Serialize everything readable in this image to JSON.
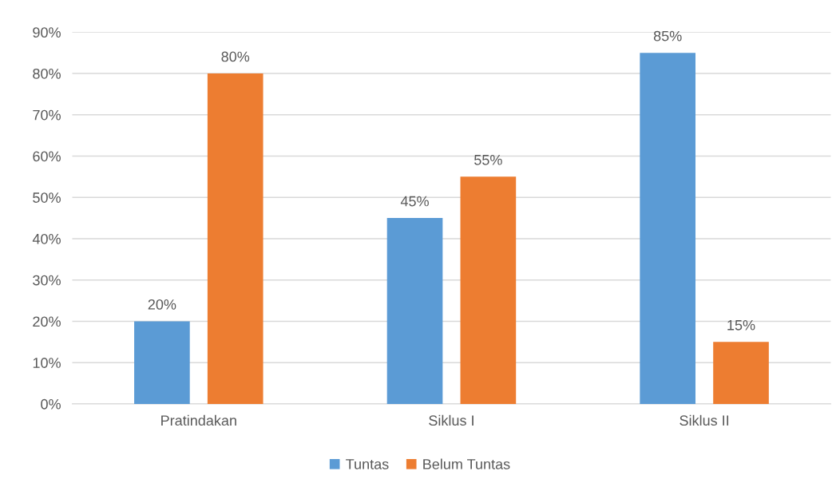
{
  "chart_data": {
    "type": "bar",
    "categories": [
      "Pratindakan",
      "Siklus I",
      "Siklus II"
    ],
    "series": [
      {
        "name": "Tuntas",
        "color": "#5b9bd5",
        "values": [
          20,
          45,
          85
        ],
        "value_labels": [
          "20%",
          "45%",
          "85%"
        ]
      },
      {
        "name": "Belum Tuntas",
        "color": "#ed7d31",
        "values": [
          80,
          55,
          15
        ],
        "value_labels": [
          "80%",
          "55%",
          "15%"
        ]
      }
    ],
    "ylim": [
      0,
      90
    ],
    "yticks": [
      {
        "value": 0,
        "label": "0%"
      },
      {
        "value": 10,
        "label": "10%"
      },
      {
        "value": 20,
        "label": "20%"
      },
      {
        "value": 30,
        "label": "30%"
      },
      {
        "value": 40,
        "label": "40%"
      },
      {
        "value": 50,
        "label": "50%"
      },
      {
        "value": 60,
        "label": "60%"
      },
      {
        "value": 70,
        "label": "70%"
      },
      {
        "value": 80,
        "label": "80%"
      },
      {
        "value": 90,
        "label": "90%"
      }
    ],
    "grid": "y",
    "legend": "bottom"
  }
}
